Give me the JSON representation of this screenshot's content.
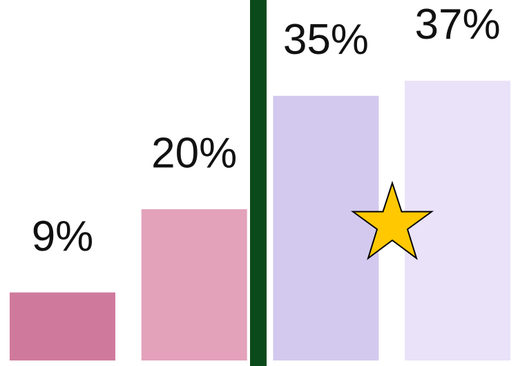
{
  "chart_data": {
    "type": "bar",
    "categories": [
      null,
      null,
      null,
      null
    ],
    "values": [
      9,
      20,
      35,
      37
    ],
    "value_labels": [
      "9%",
      "20%",
      "35%",
      "37%"
    ],
    "colors": [
      "#cf7a9c",
      "#e3a2ba",
      "#d3c9ee",
      "#e9e2f8"
    ]
  }
}
